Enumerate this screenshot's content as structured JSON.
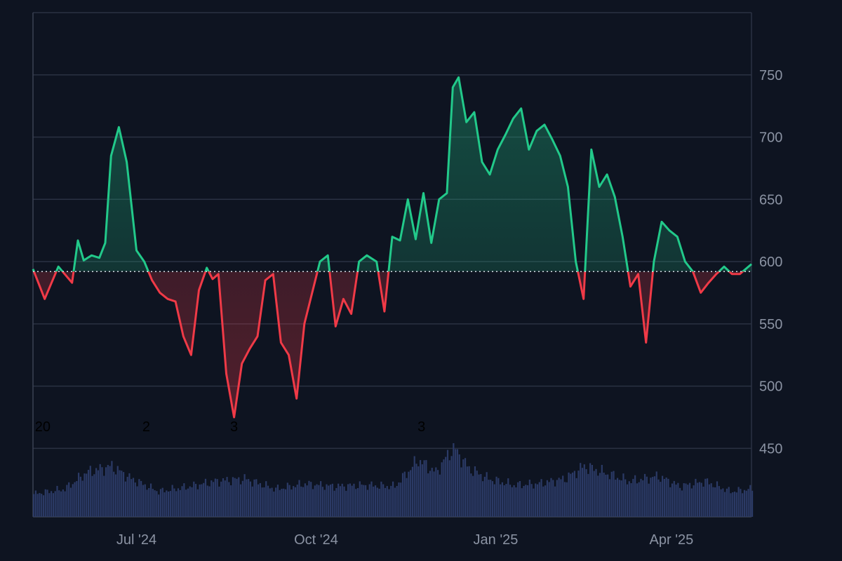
{
  "chart_data": {
    "type": "area",
    "baseline": 592,
    "ylim": [
      395,
      800
    ],
    "y_ticks": [
      450,
      500,
      550,
      600,
      650,
      700,
      750
    ],
    "x_range": [
      "2024-05-09",
      "2025-05-12"
    ],
    "x_ticks": [
      {
        "date": "2024-07-01",
        "label": "Jul '24"
      },
      {
        "date": "2024-10-01",
        "label": "Oct '24"
      },
      {
        "date": "2025-01-01",
        "label": "Jan '25"
      },
      {
        "date": "2025-04-01",
        "label": "Apr '25"
      }
    ],
    "grid": true,
    "colors": {
      "up": "#22c98a",
      "down": "#f03a47",
      "volume": "#2b3a66",
      "grid": "#2a3142",
      "background": "#0e1421",
      "baseline": "#d6dbe4"
    },
    "markers": [
      {
        "date": "2024-05-10",
        "label": "20"
      },
      {
        "date": "2024-07-04",
        "label": "2"
      },
      {
        "date": "2024-08-18",
        "label": "3"
      },
      {
        "date": "2024-11-22",
        "label": "3"
      }
    ],
    "series": [
      {
        "x": [
          "2024-05-09",
          "2024-05-15",
          "2024-05-22",
          "2024-05-29",
          "2024-06-01",
          "2024-06-04",
          "2024-06-08",
          "2024-06-12",
          "2024-06-15",
          "2024-06-18",
          "2024-06-22",
          "2024-06-26",
          "2024-07-01",
          "2024-07-05",
          "2024-07-09",
          "2024-07-13",
          "2024-07-17",
          "2024-07-21",
          "2024-07-25",
          "2024-07-29",
          "2024-08-02",
          "2024-08-06",
          "2024-08-09",
          "2024-08-12",
          "2024-08-16",
          "2024-08-20",
          "2024-08-24",
          "2024-08-28",
          "2024-09-01",
          "2024-09-05",
          "2024-09-09",
          "2024-09-13",
          "2024-09-17",
          "2024-09-21",
          "2024-09-25",
          "2024-09-29",
          "2024-10-03",
          "2024-10-07",
          "2024-10-11",
          "2024-10-15",
          "2024-10-19",
          "2024-10-23",
          "2024-10-27",
          "2024-11-01",
          "2024-11-05",
          "2024-11-09",
          "2024-11-13",
          "2024-11-17",
          "2024-11-21",
          "2024-11-25",
          "2024-11-29",
          "2024-12-03",
          "2024-12-07",
          "2024-12-10",
          "2024-12-13",
          "2024-12-17",
          "2024-12-21",
          "2024-12-25",
          "2024-12-29",
          "2025-01-02",
          "2025-01-06",
          "2025-01-10",
          "2025-01-14",
          "2025-01-18",
          "2025-01-22",
          "2025-01-26",
          "2025-01-30",
          "2025-02-03",
          "2025-02-07",
          "2025-02-11",
          "2025-02-15",
          "2025-02-19",
          "2025-02-23",
          "2025-02-27",
          "2025-03-03",
          "2025-03-07",
          "2025-03-11",
          "2025-03-15",
          "2025-03-19",
          "2025-03-23",
          "2025-03-27",
          "2025-03-31",
          "2025-04-04",
          "2025-04-08",
          "2025-04-12",
          "2025-04-16",
          "2025-04-20",
          "2025-04-24",
          "2025-04-28",
          "2025-05-02",
          "2025-05-06",
          "2025-05-12"
        ],
        "values": [
          594,
          570,
          596,
          583,
          617,
          601,
          605,
          603,
          615,
          685,
          708,
          680,
          609,
          600,
          585,
          575,
          570,
          568,
          540,
          525,
          577,
          595,
          586,
          590,
          510,
          475,
          518,
          530,
          540,
          585,
          590,
          535,
          525,
          490,
          550,
          575,
          600,
          605,
          548,
          570,
          558,
          600,
          605,
          600,
          560,
          620,
          617,
          650,
          618,
          655,
          615,
          650,
          655,
          740,
          748,
          712,
          720,
          680,
          670,
          690,
          702,
          715,
          723,
          690,
          705,
          710,
          698,
          685,
          660,
          600,
          570,
          690,
          660,
          670,
          652,
          620,
          580,
          590,
          535,
          600,
          632,
          625,
          620,
          600,
          592,
          575,
          583,
          590,
          596,
          590,
          590,
          598
        ]
      }
    ],
    "volume": {
      "x": [
        "2024-05-09",
        "2024-05-25",
        "2024-06-05",
        "2024-06-18",
        "2024-06-28",
        "2024-07-12",
        "2024-07-28",
        "2024-08-10",
        "2024-08-25",
        "2024-09-10",
        "2024-09-25",
        "2024-10-10",
        "2024-10-25",
        "2024-11-10",
        "2024-11-22",
        "2024-12-01",
        "2024-12-10",
        "2024-12-18",
        "2024-12-28",
        "2025-01-10",
        "2025-01-22",
        "2025-02-05",
        "2025-02-15",
        "2025-02-25",
        "2025-03-10",
        "2025-03-25",
        "2025-04-05",
        "2025-04-18",
        "2025-05-01",
        "2025-05-12"
      ],
      "values": [
        18,
        22,
        35,
        40,
        30,
        20,
        24,
        28,
        30,
        22,
        26,
        24,
        25,
        24,
        45,
        35,
        55,
        38,
        30,
        25,
        26,
        30,
        40,
        35,
        28,
        32,
        24,
        28,
        20,
        22
      ]
    }
  }
}
